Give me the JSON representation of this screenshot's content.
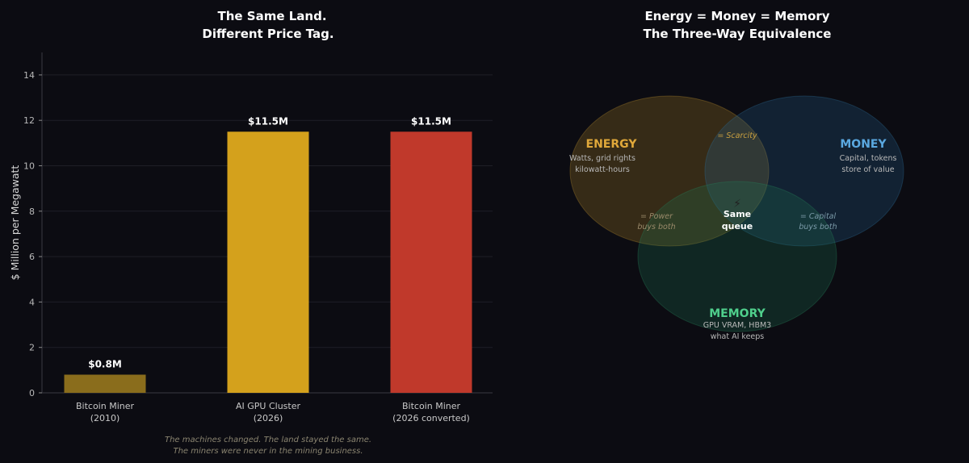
{
  "chart_data": [
    {
      "type": "bar",
      "title": [
        "The Same Land.",
        "Different Price Tag."
      ],
      "ylabel": "$ Million per Megawatt",
      "ylim": [
        0,
        15
      ],
      "yticks": [
        0,
        2,
        4,
        6,
        8,
        10,
        12,
        14
      ],
      "grid": true,
      "categories": [
        [
          "Bitcoin Miner",
          "(2010)"
        ],
        [
          "AI GPU Cluster",
          "(2026)"
        ],
        [
          "Bitcoin Miner",
          "(2026 converted)"
        ]
      ],
      "values": [
        0.8,
        11.5,
        11.5
      ],
      "data_labels": [
        "$0.8M",
        "$11.5M",
        "$11.5M"
      ],
      "colors": [
        "#8a6d1c",
        "#d4a11c",
        "#c0392b"
      ],
      "caption": [
        "The machines changed. The land stayed the same.",
        "The miners were never in the mining business."
      ]
    },
    {
      "type": "venn",
      "title": [
        "Energy = Money = Memory",
        "The Three-Way Equivalence"
      ],
      "sets": [
        {
          "name": "ENERGY",
          "lines": [
            "Watts, grid rights",
            "kilowatt-hours"
          ],
          "color": "#e0a83a"
        },
        {
          "name": "MONEY",
          "lines": [
            "Capital, tokens",
            "store of value"
          ],
          "color": "#5aa8e0"
        },
        {
          "name": "MEMORY",
          "lines": [
            "GPU VRAM, HBM3",
            "what AI keeps"
          ],
          "color": "#4fcf8c"
        }
      ],
      "intersections": {
        "energy_money": [
          "= Scarcity"
        ],
        "energy_memory": [
          "= Power",
          "buys both"
        ],
        "money_memory": [
          "= Capital",
          "buys both"
        ],
        "center": {
          "icon": "lightning-icon",
          "glyph": "⚡",
          "lines": [
            "Same",
            "queue"
          ]
        }
      }
    }
  ]
}
